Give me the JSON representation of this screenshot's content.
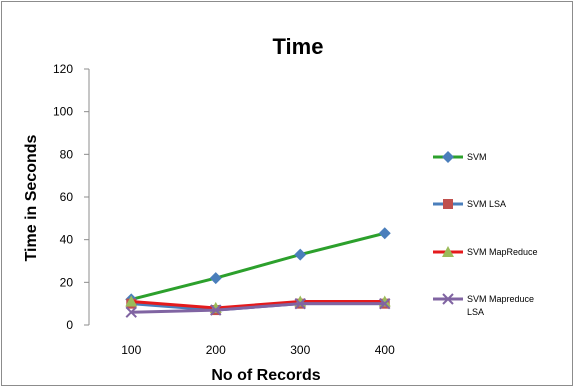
{
  "chart_data": {
    "type": "line",
    "title": "Time",
    "xlabel": "No of Records",
    "ylabel": "Time in Seconds",
    "categories": [
      "100",
      "200",
      "300",
      "400"
    ],
    "ylim": [
      0,
      120
    ],
    "yticks": [
      "0",
      "20",
      "40",
      "60",
      "80",
      "100",
      "120"
    ],
    "grid": false,
    "legend_position": "right",
    "series": [
      {
        "name": "SVM",
        "values": [
          12,
          22,
          33,
          43
        ],
        "color": "#2ca02c",
        "marker": "diamond",
        "marker_color": "#4a7ebb"
      },
      {
        "name": "SVM LSA",
        "values": [
          10,
          7,
          10,
          10
        ],
        "color": "#4a7ebb",
        "marker": "square",
        "marker_color": "#c0504d"
      },
      {
        "name": "SVM MapReduce",
        "values": [
          11,
          8,
          11,
          11
        ],
        "color": "#e41a1c",
        "marker": "triangle",
        "marker_color": "#9bbb59"
      },
      {
        "name": "SVM Mapreduce LSA",
        "values": [
          6,
          7,
          10,
          10
        ],
        "color": "#8064a2",
        "marker": "x",
        "marker_color": "#8064a2"
      }
    ]
  }
}
